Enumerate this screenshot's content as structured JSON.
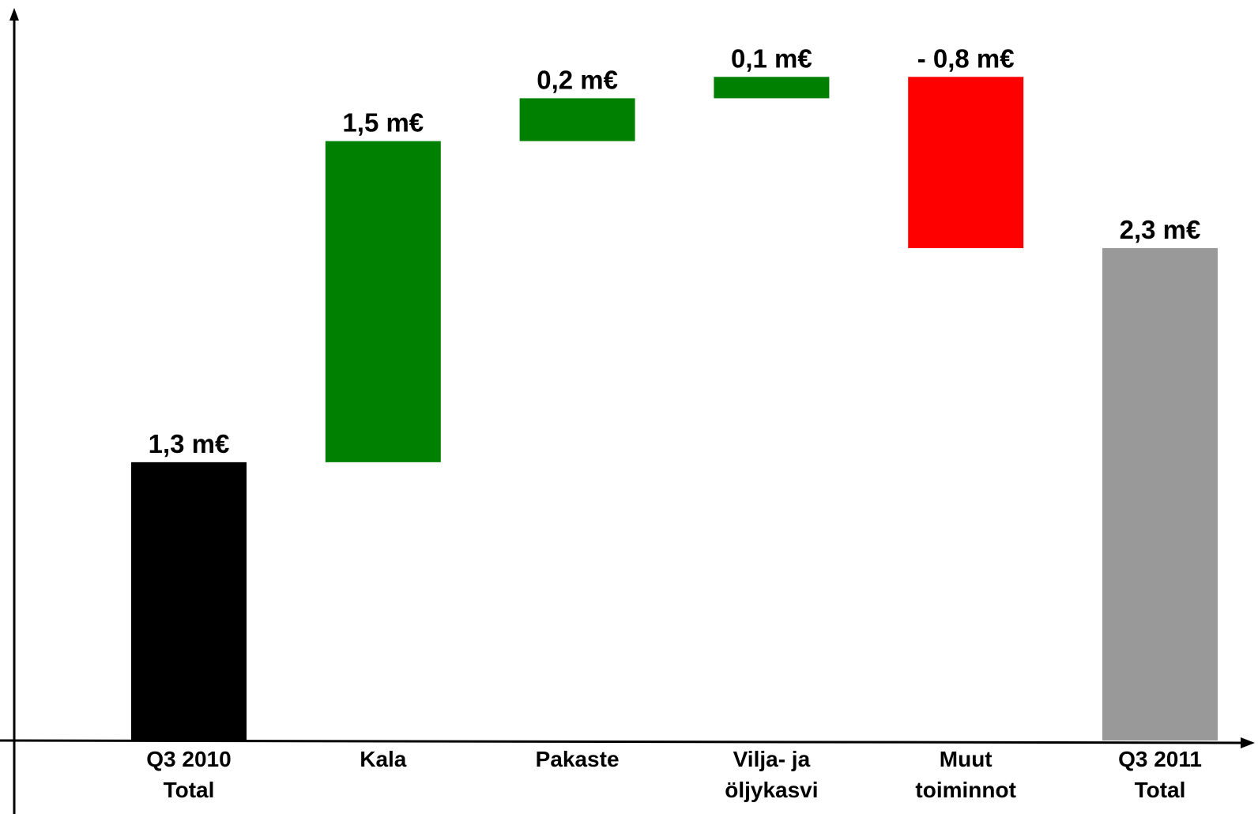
{
  "chart_data": {
    "type": "waterfall",
    "categories": [
      [
        "Q3 2010",
        "Total"
      ],
      [
        "Kala"
      ],
      [
        "Pakaste"
      ],
      [
        "Vilja- ja",
        "öljykasvi"
      ],
      [
        "Muut",
        "toiminnot"
      ],
      [
        "Q3 2011",
        "Total"
      ]
    ],
    "values": [
      1.3,
      1.5,
      0.2,
      0.1,
      -0.8,
      2.3
    ],
    "value_labels": [
      "1,3 m€",
      "1,5 m€",
      "0,2 m€",
      "0,1 m€",
      "- 0,8 m€",
      "2,3 m€"
    ],
    "colors": [
      "#000000",
      "#008000",
      "#008000",
      "#008000",
      "#ff0000",
      "#999999"
    ],
    "ylim": [
      0,
      3.4
    ]
  }
}
